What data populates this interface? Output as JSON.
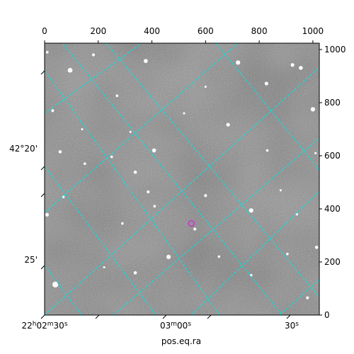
{
  "chart_data": {
    "type": "scatter",
    "xlabel": "pos.eq.ra",
    "ylabel": "",
    "xlim": [
      0,
      1024
    ],
    "ylim": [
      0,
      1024
    ],
    "top_axis": {
      "ticks": [
        0,
        200,
        400,
        600,
        800,
        1000
      ],
      "labels": [
        "0",
        "200",
        "400",
        "600",
        "800",
        "1000"
      ]
    },
    "right_axis": {
      "ticks": [
        0,
        200,
        400,
        600,
        800,
        1000
      ],
      "labels": [
        "0",
        "200",
        "400",
        "600",
        "800",
        "1000"
      ]
    },
    "ra_ticks": [
      {
        "label_h": "22",
        "label_hs": "h",
        "label_m": "02",
        "label_ms": "m",
        "label_s": "30",
        "label_ss": "s",
        "x": 0
      },
      {
        "label_h": "",
        "label_hs": "",
        "label_m": "03",
        "label_ms": "m",
        "label_s": "00",
        "label_ss": "s",
        "x": 460
      },
      {
        "label_h": "",
        "label_hs": "",
        "label_m": "",
        "label_ms": "",
        "label_s": "30",
        "label_ss": "s",
        "x": 920
      }
    ],
    "dec_ticks": [
      {
        "label": "42°20'",
        "y": 615
      },
      {
        "label": "25'",
        "y": 200
      }
    ],
    "grid": true,
    "grid_color": "#00e5e5",
    "marker": {
      "x": 547,
      "y": 345,
      "color": "#cc33cc",
      "shape": "circle"
    },
    "stars": [
      {
        "x": 95,
        "y": 922,
        "m": 2.6
      },
      {
        "x": 377,
        "y": 957,
        "m": 2.2
      },
      {
        "x": 721,
        "y": 951,
        "m": 2.4
      },
      {
        "x": 924,
        "y": 942,
        "m": 2.0
      },
      {
        "x": 955,
        "y": 931,
        "m": 2.2
      },
      {
        "x": 827,
        "y": 872,
        "m": 2.0
      },
      {
        "x": 1000,
        "y": 775,
        "m": 2.4
      },
      {
        "x": 684,
        "y": 717,
        "m": 2.0
      },
      {
        "x": 408,
        "y": 620,
        "m": 2.2
      },
      {
        "x": 58,
        "y": 615,
        "m": 1.8
      },
      {
        "x": 338,
        "y": 538,
        "m": 1.8
      },
      {
        "x": 386,
        "y": 464,
        "m": 1.6
      },
      {
        "x": 770,
        "y": 394,
        "m": 2.4
      },
      {
        "x": 9,
        "y": 378,
        "m": 2.0
      },
      {
        "x": 1014,
        "y": 255,
        "m": 1.8
      },
      {
        "x": 462,
        "y": 219,
        "m": 2.4
      },
      {
        "x": 338,
        "y": 159,
        "m": 1.8
      },
      {
        "x": 40,
        "y": 115,
        "m": 3.2
      },
      {
        "x": 182,
        "y": 980,
        "m": 1.6
      },
      {
        "x": 270,
        "y": 826,
        "m": 1.4
      },
      {
        "x": 30,
        "y": 770,
        "m": 1.6
      },
      {
        "x": 250,
        "y": 596,
        "m": 1.4
      },
      {
        "x": 600,
        "y": 450,
        "m": 1.6
      },
      {
        "x": 560,
        "y": 324,
        "m": 1.6
      },
      {
        "x": 290,
        "y": 345,
        "m": 1.4
      },
      {
        "x": 410,
        "y": 410,
        "m": 1.4
      },
      {
        "x": 150,
        "y": 570,
        "m": 1.4
      },
      {
        "x": 830,
        "y": 620,
        "m": 1.4
      },
      {
        "x": 905,
        "y": 230,
        "m": 1.4
      },
      {
        "x": 980,
        "y": 65,
        "m": 1.6
      },
      {
        "x": 70,
        "y": 445,
        "m": 1.4
      },
      {
        "x": 650,
        "y": 220,
        "m": 1.4
      },
      {
        "x": 940,
        "y": 380,
        "m": 1.4
      },
      {
        "x": 140,
        "y": 700,
        "m": 1.2
      },
      {
        "x": 520,
        "y": 760,
        "m": 1.2
      },
      {
        "x": 770,
        "y": 150,
        "m": 1.4
      },
      {
        "x": 222,
        "y": 180,
        "m": 1.2
      },
      {
        "x": 880,
        "y": 470,
        "m": 1.2
      },
      {
        "x": 600,
        "y": 860,
        "m": 1.2
      },
      {
        "x": 10,
        "y": 990,
        "m": 1.4
      },
      {
        "x": 1010,
        "y": 610,
        "m": 1.2
      },
      {
        "x": 320,
        "y": 690,
        "m": 1.2
      }
    ]
  }
}
